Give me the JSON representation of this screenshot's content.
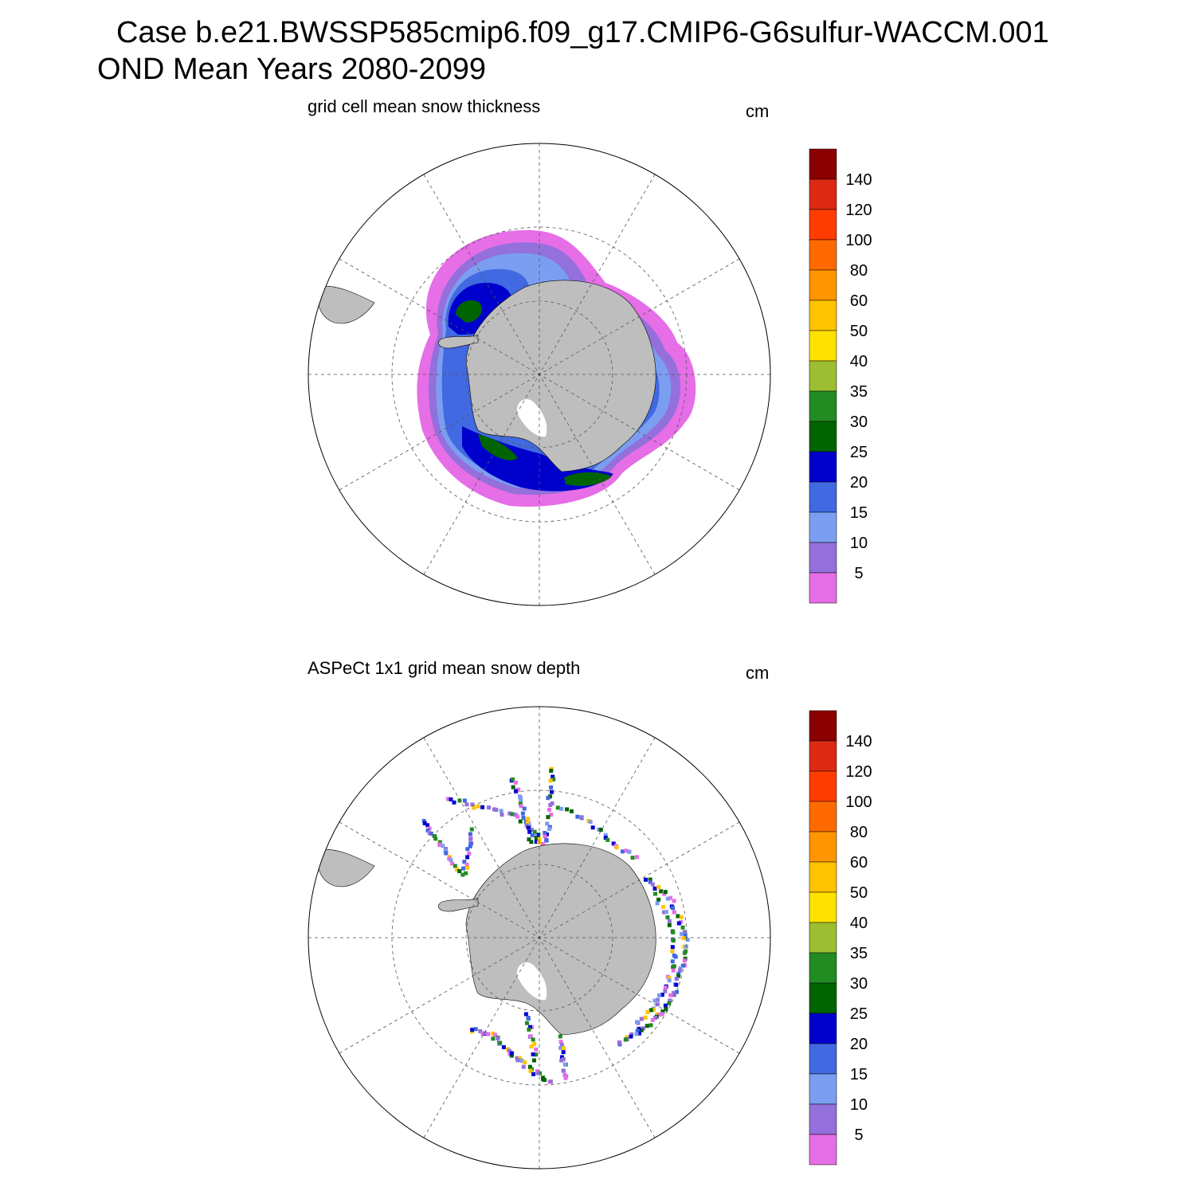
{
  "header": {
    "title_line1": "Case b.e21.BWSSP585cmip6.f09_g17.CMIP6-G6sulfur-WACCM.001",
    "title_line2": "OND Mean   Years 2080-2099"
  },
  "panels": [
    {
      "id": "top",
      "title": "grid cell mean snow thickness",
      "unit": "cm"
    },
    {
      "id": "bottom",
      "title": "ASPeCt 1x1 grid mean snow depth",
      "unit": "cm"
    }
  ],
  "colorbar": {
    "labels": [
      "140",
      "120",
      "100",
      "80",
      "60",
      "50",
      "40",
      "35",
      "30",
      "25",
      "20",
      "15",
      "10",
      "5"
    ],
    "colors": [
      "#8b0000",
      "#dc2a14",
      "#ff3c00",
      "#ff6a00",
      "#ff9500",
      "#ffc300",
      "#ffe100",
      "#9cbe32",
      "#228b22",
      "#006400",
      "#0000cd",
      "#4169e1",
      "#7b9ef0",
      "#9370db",
      "#e66ee6"
    ]
  },
  "map_style": {
    "land_color": "#bebebe",
    "ocean_color": "#ffffff",
    "grid_style": "dashed",
    "projection": "south polar stereographic"
  },
  "chart_data": [
    {
      "type": "heatmap",
      "title": "grid cell mean snow thickness",
      "unit": "cm",
      "levels": [
        5,
        10,
        15,
        20,
        25,
        30,
        35,
        40,
        50,
        60,
        80,
        100,
        120,
        140
      ]
    },
    {
      "type": "heatmap",
      "title": "ASPeCt 1x1 grid mean snow depth",
      "unit": "cm",
      "levels": [
        5,
        10,
        15,
        20,
        25,
        30,
        35,
        40,
        50,
        60,
        80,
        100,
        120,
        140
      ]
    }
  ]
}
